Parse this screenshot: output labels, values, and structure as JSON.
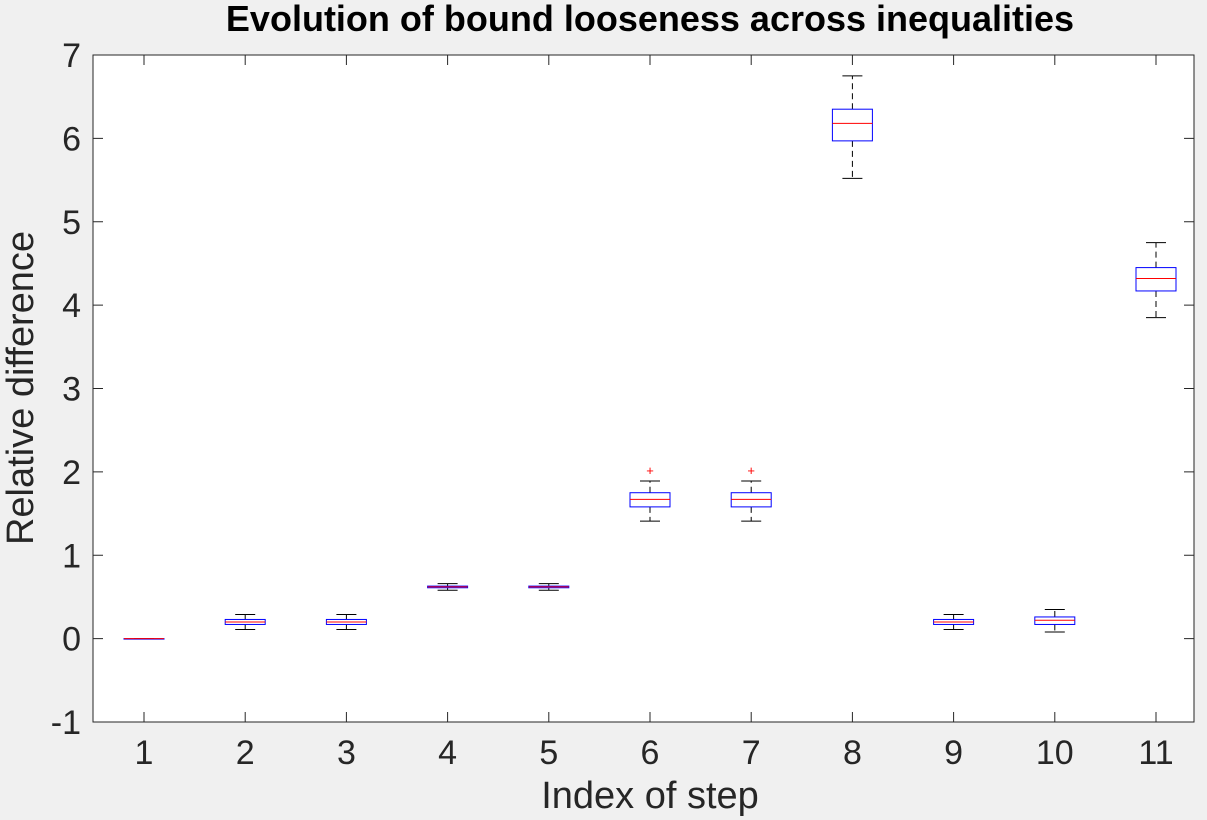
{
  "chart_data": {
    "type": "boxplot",
    "title": "Evolution of bound looseness across inequalities",
    "xlabel": "Index of step",
    "ylabel": "Relative difference",
    "categories": [
      "1",
      "2",
      "3",
      "4",
      "5",
      "6",
      "7",
      "8",
      "9",
      "10",
      "11"
    ],
    "ylim": [
      -1,
      7
    ],
    "yticks": [
      "-1",
      "0",
      "1",
      "2",
      "3",
      "4",
      "5",
      "6",
      "7"
    ],
    "grid": false,
    "colors": {
      "box": "#0000ff",
      "median": "#ff0000",
      "whisker": "#000000",
      "outlier": "#ff0000",
      "axes": "#262626",
      "background": "#f0f0f0",
      "plot_area": "#ffffff"
    },
    "boxes": [
      {
        "label": "1",
        "min": 0.0,
        "q1": 0.0,
        "median": 0.0,
        "q3": 0.0,
        "max": 0.0,
        "outliers": []
      },
      {
        "label": "2",
        "min": 0.11,
        "q1": 0.17,
        "median": 0.2,
        "q3": 0.23,
        "max": 0.29,
        "outliers": []
      },
      {
        "label": "3",
        "min": 0.11,
        "q1": 0.17,
        "median": 0.2,
        "q3": 0.23,
        "max": 0.29,
        "outliers": []
      },
      {
        "label": "4",
        "min": 0.58,
        "q1": 0.61,
        "median": 0.62,
        "q3": 0.63,
        "max": 0.66,
        "outliers": []
      },
      {
        "label": "5",
        "min": 0.58,
        "q1": 0.61,
        "median": 0.62,
        "q3": 0.63,
        "max": 0.66,
        "outliers": []
      },
      {
        "label": "6",
        "min": 1.41,
        "q1": 1.58,
        "median": 1.67,
        "q3": 1.75,
        "max": 1.89,
        "outliers": [
          2.02
        ]
      },
      {
        "label": "7",
        "min": 1.41,
        "q1": 1.58,
        "median": 1.67,
        "q3": 1.75,
        "max": 1.89,
        "outliers": [
          2.02
        ]
      },
      {
        "label": "8",
        "min": 5.52,
        "q1": 5.97,
        "median": 6.18,
        "q3": 6.35,
        "max": 6.75,
        "outliers": []
      },
      {
        "label": "9",
        "min": 0.11,
        "q1": 0.17,
        "median": 0.2,
        "q3": 0.23,
        "max": 0.29,
        "outliers": []
      },
      {
        "label": "10",
        "min": 0.08,
        "q1": 0.17,
        "median": 0.22,
        "q3": 0.26,
        "max": 0.35,
        "outliers": []
      },
      {
        "label": "11",
        "min": 3.85,
        "q1": 4.17,
        "median": 4.32,
        "q3": 4.45,
        "max": 4.75,
        "outliers": []
      }
    ]
  }
}
